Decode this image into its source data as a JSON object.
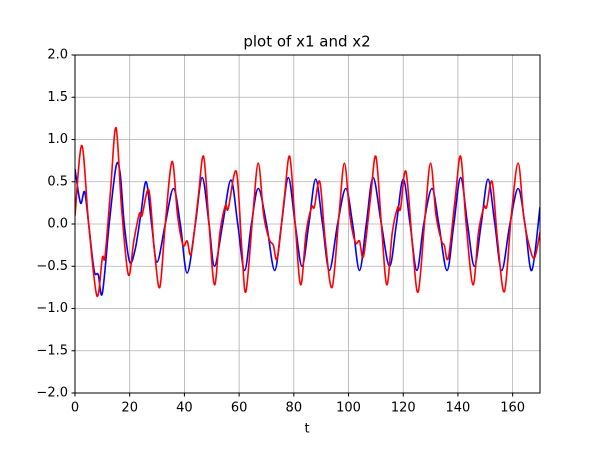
{
  "chart_data": {
    "type": "line",
    "title": "plot of x1 and x2",
    "x_label": "t",
    "xlim": [
      0,
      170
    ],
    "ylim": [
      -2.0,
      2.0
    ],
    "xticks": [
      0,
      20,
      40,
      60,
      80,
      100,
      120,
      140,
      160
    ],
    "yticks": [
      {
        "value": -2.0,
        "label": "−2.0"
      },
      {
        "value": -1.5,
        "label": "−1.5"
      },
      {
        "value": -1.0,
        "label": "−1.0"
      },
      {
        "value": -0.5,
        "label": "−0.5"
      },
      {
        "value": 0.0,
        "label": "0.0"
      },
      {
        "value": 0.5,
        "label": "0.5"
      },
      {
        "value": 1.0,
        "label": "1.0"
      },
      {
        "value": 1.5,
        "label": "1.5"
      },
      {
        "value": 2.0,
        "label": "2.0"
      }
    ],
    "grid": true,
    "series": [
      {
        "color": "#0000ff",
        "x": [
          0,
          2,
          3.5,
          5,
          7,
          8.5,
          10,
          12.5,
          15,
          16.5,
          18,
          20,
          22,
          24,
          26,
          28,
          30,
          33,
          36,
          38.5,
          41,
          44,
          46.5,
          49,
          51,
          54,
          57,
          59.5,
          62,
          64.5,
          67,
          70,
          73,
          75.5,
          78,
          80.5,
          83,
          85.5,
          88,
          90.5,
          93,
          96,
          99,
          101.5,
          104,
          106.5,
          109,
          112,
          115,
          117.5,
          120,
          122.5,
          125,
          127.5,
          130.5,
          133,
          136,
          138.5,
          141,
          143.5,
          146,
          148.5,
          151,
          153.5,
          156,
          159,
          162,
          164.5,
          167,
          170
        ],
        "values": [
          0.65,
          0.25,
          0.38,
          0,
          -0.55,
          -0.6,
          -0.82,
          0,
          0.68,
          0.6,
          0,
          -0.45,
          -0.3,
          0.1,
          0.5,
          0,
          -0.45,
          0,
          0.42,
          0,
          -0.58,
          0,
          0.55,
          0,
          -0.5,
          0,
          0.52,
          0,
          -0.55,
          0,
          0.42,
          0,
          -0.55,
          0,
          0.55,
          0,
          -0.5,
          0,
          0.53,
          0,
          -0.55,
          0,
          0.42,
          0,
          -0.55,
          0,
          0.55,
          0,
          -0.5,
          0,
          0.53,
          0,
          -0.55,
          0,
          0.42,
          0,
          -0.55,
          0,
          0.55,
          0,
          -0.5,
          0,
          0.53,
          0,
          -0.55,
          0,
          0.42,
          0,
          -0.55,
          0.2
        ]
      },
      {
        "color": "#ff0000",
        "x": [
          0,
          2.5,
          5,
          8,
          10,
          11,
          13,
          15,
          17,
          19.5,
          21.5,
          23.5,
          24.5,
          27,
          29,
          31,
          33,
          35.5,
          37.5,
          39.5,
          41,
          42.5,
          45,
          47,
          49,
          51,
          53,
          55,
          56,
          59,
          61,
          62.5,
          65,
          67,
          69,
          71,
          72.5,
          74,
          76.5,
          78.5,
          80.5,
          82.5,
          84.5,
          86.5,
          87.5,
          89.5,
          91.5,
          94,
          96.5,
          98.5,
          100.5,
          102.5,
          104,
          105.5,
          108,
          110,
          112,
          114,
          116,
          118,
          119,
          121,
          123.5,
          125.5,
          128,
          130,
          132,
          134,
          135,
          136.5,
          139,
          141,
          143,
          145.5,
          147.5,
          149.5,
          150.5,
          152.5,
          154.5,
          157,
          159.5,
          162,
          164,
          166,
          168,
          170
        ],
        "values": [
          0.1,
          0.93,
          0,
          -0.85,
          -0.4,
          -0.38,
          0.4,
          1.14,
          0.2,
          -0.6,
          -0.2,
          0.12,
          0.1,
          0.4,
          -0.3,
          -0.75,
          0,
          0.74,
          0.1,
          -0.25,
          -0.2,
          -0.35,
          0.3,
          0.8,
          0,
          -0.72,
          -0.1,
          0.22,
          0.18,
          0.62,
          -0.3,
          -0.8,
          0.1,
          0.72,
          0.1,
          -0.18,
          -0.25,
          -0.4,
          0.3,
          0.8,
          0,
          -0.72,
          -0.1,
          0.2,
          0.2,
          0.5,
          -0.2,
          -0.75,
          0.1,
          0.72,
          0.1,
          -0.22,
          -0.2,
          -0.38,
          0.3,
          0.8,
          0,
          -0.72,
          -0.1,
          0.2,
          0.18,
          0.62,
          -0.3,
          -0.8,
          0.1,
          0.72,
          0.1,
          -0.2,
          -0.25,
          -0.4,
          0.3,
          0.8,
          0,
          -0.72,
          -0.1,
          0.2,
          0.2,
          0.5,
          -0.2,
          -0.8,
          0.1,
          0.72,
          0.1,
          -0.25,
          -0.4,
          -0.1
        ]
      }
    ]
  }
}
